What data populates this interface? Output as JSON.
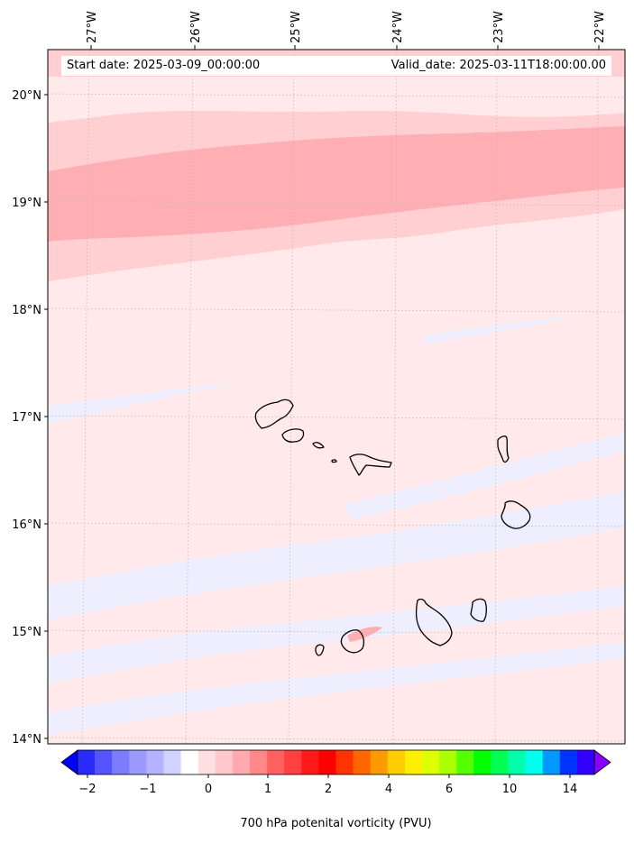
{
  "header": {
    "start_date": "Start date: 2025-03-09_00:00:00",
    "valid_date": "Valid_date: 2025-03-11T18:00:00.00"
  },
  "map": {
    "lon_ticks": [
      "27°W",
      "26°W",
      "25°W",
      "24°W",
      "23°W",
      "22°W"
    ],
    "lat_ticks": [
      "20°N",
      "19°N",
      "18°N",
      "17°N",
      "16°N",
      "15°N",
      "14°N"
    ],
    "islands": [
      "Santo Antão",
      "São Vicente",
      "Santa Luzia",
      "Branco",
      "São Nicolau",
      "Sal",
      "Boa Vista",
      "Maio",
      "Santiago",
      "Fogo",
      "Brava"
    ],
    "colors": {
      "pale_pink": "#ffe9ea",
      "light_pink": "#ffcfd2",
      "pink": "#ffaeb3",
      "pale_blue": "#eeeeff"
    }
  },
  "colorbar": {
    "label": "700 hPa potenital vorticity (PVU)",
    "tick_labels": [
      "−2",
      "−1",
      "0",
      "1",
      "2",
      "4",
      "6",
      "10",
      "14"
    ],
    "colors": [
      "#0000ff",
      "#2b2bff",
      "#5555ff",
      "#7c7cff",
      "#9a9aff",
      "#b3b3ff",
      "#d2d2ff",
      "#ffffff",
      "#ffe0e2",
      "#ffc8cc",
      "#ffaaae",
      "#ff8888",
      "#ff6060",
      "#ff4040",
      "#ff1a1a",
      "#ff0000",
      "#ff3300",
      "#ff6600",
      "#ff9900",
      "#ffcc00",
      "#ffee00",
      "#ddff00",
      "#aaff00",
      "#55ff00",
      "#00ff00",
      "#00ff55",
      "#00ffaa",
      "#00ffee",
      "#0099ff",
      "#0033ff",
      "#3300ff",
      "#8800ff"
    ]
  }
}
